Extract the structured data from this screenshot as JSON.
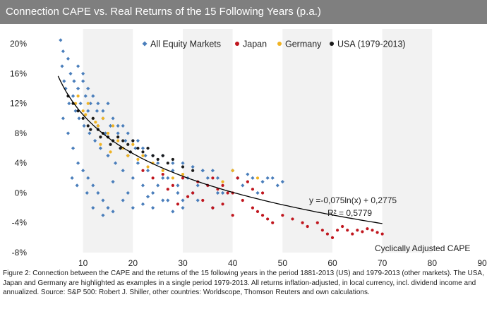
{
  "header": {
    "title": "Connection CAPE vs. Real Returns of the 15 Following Years (p.a.)"
  },
  "caption": {
    "text": "Figure 2: Connection between the CAPE and the returns of the 15 following years in the period 1881-2013 (US) and 1979-2013 (other markets). The USA, Japan and Germany are highlighted as examples in a single period 1979-2013. All returns inflation-adjusted, in local currency, incl. dividend income and annualized. Source: S&P 500: Robert J. Shiller, other countries: Worldscope, Thomson Reuters and own calculations."
  },
  "chart_data": {
    "type": "scatter",
    "title": "Connection CAPE vs. Real Returns of the 15 Following Years (p.a.)",
    "xlabel": "Cyclically Adjusted CAPE",
    "ylabel": "",
    "xlim": [
      0,
      90
    ],
    "ylim": [
      -0.08,
      0.22
    ],
    "x_ticks": [
      10,
      20,
      30,
      40,
      50,
      60,
      70,
      80,
      90
    ],
    "y_ticks": [
      {
        "value": -0.08,
        "label": "-8%"
      },
      {
        "value": -0.04,
        "label": "-4%"
      },
      {
        "value": 0.0,
        "label": "0%"
      },
      {
        "value": 0.04,
        "label": "4%"
      },
      {
        "value": 0.08,
        "label": "8%"
      },
      {
        "value": 0.12,
        "label": "12%"
      },
      {
        "value": 0.16,
        "label": "16%"
      },
      {
        "value": 0.2,
        "label": "20%"
      }
    ],
    "grid": "alternating vertical bands",
    "legend_position": "top",
    "legend": [
      {
        "name": "All Equity Markets",
        "color": "#4a7ebb",
        "marker": "diamond"
      },
      {
        "name": "Japan",
        "color": "#c0161e",
        "marker": "circle"
      },
      {
        "name": "Germany",
        "color": "#f0b323",
        "marker": "circle"
      },
      {
        "name": "USA (1979-2013)",
        "color": "#1a1a1a",
        "marker": "circle"
      }
    ],
    "trendline": {
      "equation": "y =-0,075ln(x) + 0,2775",
      "r_squared": "R² = 0,5779",
      "a": -0.075,
      "b": 0.2775,
      "x_range": [
        5,
        70
      ],
      "color": "#000000"
    },
    "series": [
      {
        "name": "All Equity Markets",
        "color": "#4a7ebb",
        "points": [
          [
            5.5,
            0.205
          ],
          [
            5.8,
            0.17
          ],
          [
            6,
            0.19
          ],
          [
            6.2,
            0.15
          ],
          [
            6.5,
            0.14
          ],
          [
            7,
            0.18
          ],
          [
            7.2,
            0.12
          ],
          [
            7.5,
            0.16
          ],
          [
            8,
            0.13
          ],
          [
            8.2,
            0.15
          ],
          [
            8.5,
            0.11
          ],
          [
            9,
            0.14
          ],
          [
            9.2,
            0.1
          ],
          [
            9.5,
            0.12
          ],
          [
            10,
            0.15
          ],
          [
            10.2,
            0.09
          ],
          [
            10.5,
            0.13
          ],
          [
            11,
            0.11
          ],
          [
            11.3,
            0.08
          ],
          [
            11.5,
            0.12
          ],
          [
            12,
            0.1
          ],
          [
            12.4,
            0.07
          ],
          [
            12.8,
            0.11
          ],
          [
            13,
            0.09
          ],
          [
            13.5,
            0.06
          ],
          [
            14,
            0.1
          ],
          [
            14.5,
            0.08
          ],
          [
            15,
            0.05
          ],
          [
            15.5,
            0.09
          ],
          [
            16,
            0.07
          ],
          [
            16.5,
            0.04
          ],
          [
            17,
            0.08
          ],
          [
            17.5,
            0.06
          ],
          [
            18,
            0.03
          ],
          [
            18.5,
            0.07
          ],
          [
            19,
            0.05
          ],
          [
            20,
            0.02
          ],
          [
            20.5,
            0.06
          ],
          [
            21,
            0.04
          ],
          [
            22,
            0.01
          ],
          [
            22.5,
            0.05
          ],
          [
            23,
            0.03
          ],
          [
            24,
            0.0
          ],
          [
            25,
            0.04
          ],
          [
            26,
            0.02
          ],
          [
            27,
            -0.01
          ],
          [
            28,
            0.03
          ],
          [
            29,
            0.01
          ],
          [
            30,
            -0.02
          ],
          [
            31,
            0.02
          ],
          [
            32,
            0.0
          ],
          [
            33,
            -0.01
          ],
          [
            34,
            0.03
          ],
          [
            35,
            0.01
          ],
          [
            36,
            -0.02
          ],
          [
            37,
            0.02
          ],
          [
            38,
            0.0
          ],
          [
            40,
            0.03
          ],
          [
            42,
            0.01
          ],
          [
            44,
            0.02
          ],
          [
            45,
            0.0
          ],
          [
            47,
            0.02
          ],
          [
            49,
            0.01
          ],
          [
            50,
            0.015
          ],
          [
            6,
            0.1
          ],
          [
            7,
            0.08
          ],
          [
            8,
            0.06
          ],
          [
            9,
            0.04
          ],
          [
            10,
            0.03
          ],
          [
            11,
            0.02
          ],
          [
            12,
            0.01
          ],
          [
            13,
            0.0
          ],
          [
            14,
            -0.01
          ],
          [
            15,
            -0.02
          ],
          [
            9,
            0.17
          ],
          [
            10,
            0.16
          ],
          [
            11,
            0.14
          ],
          [
            12,
            0.13
          ],
          [
            13,
            0.12
          ],
          [
            14,
            0.11
          ],
          [
            15,
            0.12
          ],
          [
            16,
            0.1
          ],
          [
            17,
            0.09
          ],
          [
            18,
            0.09
          ],
          [
            19,
            0.08
          ],
          [
            20,
            0.07
          ],
          [
            21,
            0.07
          ],
          [
            22,
            0.06
          ],
          [
            24,
            0.05
          ],
          [
            26,
            0.05
          ],
          [
            28,
            0.04
          ],
          [
            30,
            0.04
          ],
          [
            32,
            0.035
          ],
          [
            34,
            0.03
          ],
          [
            36,
            0.03
          ],
          [
            12,
            -0.02
          ],
          [
            14,
            -0.03
          ],
          [
            16,
            -0.025
          ],
          [
            18,
            -0.01
          ],
          [
            20,
            -0.02
          ],
          [
            22,
            -0.015
          ],
          [
            24,
            -0.02
          ],
          [
            26,
            -0.01
          ],
          [
            28,
            -0.025
          ],
          [
            30,
            -0.01
          ],
          [
            7.8,
            0.02
          ],
          [
            8.8,
            0.01
          ],
          [
            10.8,
            0.0
          ],
          [
            16,
            0.015
          ],
          [
            19,
            0.0
          ],
          [
            23,
            -0.005
          ],
          [
            25,
            0.01
          ],
          [
            27,
            0.02
          ],
          [
            29,
            0.0
          ],
          [
            33,
            0.01
          ],
          [
            35,
            0.02
          ],
          [
            37,
            0.0
          ],
          [
            41,
            0.02
          ],
          [
            43,
            0.025
          ],
          [
            46,
            0.015
          ],
          [
            48,
            0.02
          ]
        ]
      },
      {
        "name": "Japan",
        "color": "#c0161e",
        "points": [
          [
            22,
            0.03
          ],
          [
            24,
            0.02
          ],
          [
            26,
            0.025
          ],
          [
            28,
            0.01
          ],
          [
            30,
            0.02
          ],
          [
            32,
            0.0
          ],
          [
            33,
            0.015
          ],
          [
            34,
            -0.01
          ],
          [
            35,
            0.01
          ],
          [
            36,
            -0.02
          ],
          [
            37,
            0.005
          ],
          [
            38,
            -0.015
          ],
          [
            39,
            0.0
          ],
          [
            40,
            -0.03
          ],
          [
            41,
            0.02
          ],
          [
            42,
            -0.01
          ],
          [
            43,
            0.015
          ],
          [
            44,
            -0.02
          ],
          [
            45,
            -0.025
          ],
          [
            46,
            -0.03
          ],
          [
            47,
            -0.035
          ],
          [
            48,
            -0.04
          ],
          [
            50,
            -0.03
          ],
          [
            52,
            -0.035
          ],
          [
            54,
            -0.04
          ],
          [
            55,
            -0.045
          ],
          [
            57,
            -0.04
          ],
          [
            58,
            -0.05
          ],
          [
            59,
            -0.055
          ],
          [
            60,
            -0.06
          ],
          [
            61,
            -0.05
          ],
          [
            62,
            -0.045
          ],
          [
            63,
            -0.05
          ],
          [
            64,
            -0.055
          ],
          [
            65,
            -0.05
          ],
          [
            66,
            -0.052
          ],
          [
            67,
            -0.048
          ],
          [
            68,
            -0.05
          ],
          [
            69,
            -0.053
          ],
          [
            70,
            -0.055
          ],
          [
            36,
            0.02
          ],
          [
            38,
            0.01
          ],
          [
            40,
            0.0
          ],
          [
            44,
            0.005
          ],
          [
            46,
            0.0
          ],
          [
            31,
            -0.005
          ],
          [
            29,
            -0.015
          ],
          [
            27,
            0.005
          ]
        ]
      },
      {
        "name": "Germany",
        "color": "#f0b323",
        "points": [
          [
            9,
            0.13
          ],
          [
            10,
            0.11
          ],
          [
            11,
            0.12
          ],
          [
            12,
            0.1
          ],
          [
            13,
            0.09
          ],
          [
            14,
            0.1
          ],
          [
            15,
            0.08
          ],
          [
            16,
            0.09
          ],
          [
            17,
            0.07
          ],
          [
            18,
            0.06
          ],
          [
            19,
            0.05
          ],
          [
            20,
            0.065
          ],
          [
            21,
            0.045
          ],
          [
            22,
            0.05
          ],
          [
            23,
            0.035
          ],
          [
            24,
            0.04
          ],
          [
            26,
            0.03
          ],
          [
            28,
            0.02
          ],
          [
            30,
            0.025
          ],
          [
            38,
            0.015
          ],
          [
            40,
            0.03
          ],
          [
            45,
            0.02
          ],
          [
            8.5,
            0.12
          ],
          [
            10.5,
            0.105
          ],
          [
            12.5,
            0.095
          ],
          [
            13.5,
            0.065
          ],
          [
            15.5,
            0.055
          ]
        ]
      },
      {
        "name": "USA (1979-2013)",
        "color": "#1a1a1a",
        "points": [
          [
            7,
            0.13
          ],
          [
            8,
            0.12
          ],
          [
            9,
            0.11
          ],
          [
            10,
            0.1
          ],
          [
            11,
            0.09
          ],
          [
            12,
            0.1
          ],
          [
            13,
            0.085
          ],
          [
            14,
            0.08
          ],
          [
            15,
            0.075
          ],
          [
            16,
            0.07
          ],
          [
            17,
            0.075
          ],
          [
            18,
            0.07
          ],
          [
            19,
            0.065
          ],
          [
            20,
            0.07
          ],
          [
            21,
            0.06
          ],
          [
            22,
            0.055
          ],
          [
            23,
            0.06
          ],
          [
            24,
            0.05
          ],
          [
            25,
            0.045
          ],
          [
            26,
            0.05
          ],
          [
            27,
            0.04
          ],
          [
            28,
            0.045
          ],
          [
            30,
            0.035
          ],
          [
            32,
            0.03
          ],
          [
            15.5,
            0.065
          ],
          [
            17.5,
            0.06
          ],
          [
            19.5,
            0.055
          ],
          [
            13.5,
            0.075
          ],
          [
            11.5,
            0.085
          ]
        ]
      }
    ]
  }
}
